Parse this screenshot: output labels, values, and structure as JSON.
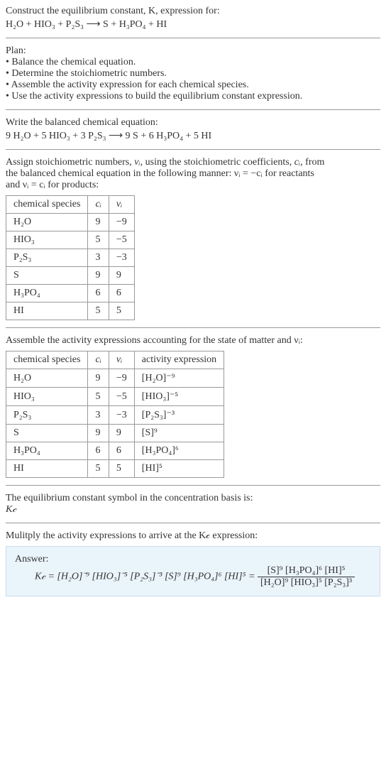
{
  "header": {
    "line1": "Construct the equilibrium constant, K, expression for:",
    "equation": "H₂O + HIO₃ + P₂S₃ ⟶ S + H₃PO₄ + HI"
  },
  "plan": {
    "title": "Plan:",
    "bullets": [
      "• Balance the chemical equation.",
      "• Determine the stoichiometric numbers.",
      "• Assemble the activity expression for each chemical species.",
      "• Use the activity expressions to build the equilibrium constant expression."
    ]
  },
  "balanced": {
    "title": "Write the balanced chemical equation:",
    "equation": "9 H₂O + 5 HIO₃ + 3 P₂S₃ ⟶ 9 S + 6 H₃PO₄ + 5 HI"
  },
  "stoich_text": {
    "line1_a": "Assign stoichiometric numbers, ",
    "nu_i": "νᵢ",
    "line1_b": ", using the stoichiometric coefficients, ",
    "c_i": "cᵢ",
    "line1_c": ", from",
    "line2": "the balanced chemical equation in the following manner: νᵢ = −cᵢ for reactants",
    "line3": "and νᵢ = cᵢ for products:"
  },
  "table1": {
    "headers": [
      "chemical species",
      "cᵢ",
      "νᵢ"
    ],
    "rows": [
      [
        "H₂O",
        "9",
        "−9"
      ],
      [
        "HIO₃",
        "5",
        "−5"
      ],
      [
        "P₂S₃",
        "3",
        "−3"
      ],
      [
        "S",
        "9",
        "9"
      ],
      [
        "H₃PO₄",
        "6",
        "6"
      ],
      [
        "HI",
        "5",
        "5"
      ]
    ]
  },
  "activity_text": "Assemble the activity expressions accounting for the state of matter and νᵢ:",
  "table2": {
    "headers": [
      "chemical species",
      "cᵢ",
      "νᵢ",
      "activity expression"
    ],
    "rows": [
      [
        "H₂O",
        "9",
        "−9",
        "[H₂O]⁻⁹"
      ],
      [
        "HIO₃",
        "5",
        "−5",
        "[HIO₃]⁻⁵"
      ],
      [
        "P₂S₃",
        "3",
        "−3",
        "[P₂S₃]⁻³"
      ],
      [
        "S",
        "9",
        "9",
        "[S]⁹"
      ],
      [
        "H₃PO₄",
        "6",
        "6",
        "[H₃PO₄]⁶"
      ],
      [
        "HI",
        "5",
        "5",
        "[HI]⁵"
      ]
    ]
  },
  "kc_symbol": {
    "line1": "The equilibrium constant symbol in the concentration basis is:",
    "line2": "K𝒸"
  },
  "multiply_text": "Mulitply the activity expressions to arrive at the K𝒸 expression:",
  "answer": {
    "label": "Answer:",
    "lhs": "K𝒸 = [H₂O]⁻⁹ [HIO₃]⁻⁵ [P₂S₃]⁻³ [S]⁹ [H₃PO₄]⁶ [HI]⁵ = ",
    "num": "[S]⁹ [H₃PO₄]⁶ [HI]⁵",
    "den": "[H₂O]⁹ [HIO₃]⁵ [P₂S₃]³"
  }
}
